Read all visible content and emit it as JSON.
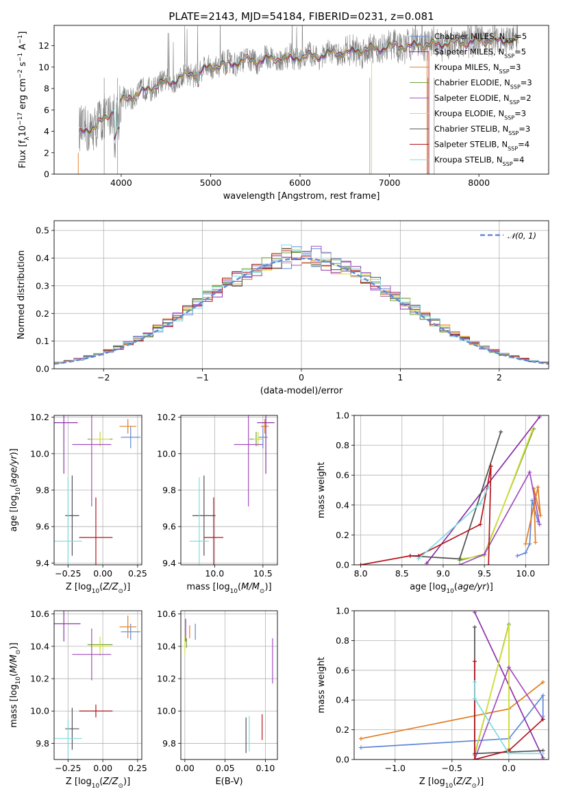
{
  "figure": {
    "title": "PLATE=2143, MJD=54184, FIBERID=0231, z=0.081"
  },
  "colors": {
    "Chabrier MILES": "#5f87d6",
    "Salpeter MILES": "#8b2ea8",
    "Kroupa MILES": "#e07b1f",
    "Chabrier ELODIE": "#6ea332",
    "Salpeter ELODIE": "#a04cc0",
    "Kroupa ELODIE": "#d8e03a",
    "Chabrier STELIB": "#4f4f4f",
    "Salpeter STELIB": "#b4121a",
    "Kroupa STELIB": "#7ddbe0",
    "data": "#808080",
    "pinkAlt": "#e07fb8"
  },
  "chart_data": [
    {
      "id": "spectrum",
      "type": "line",
      "title": "PLATE=2143, MJD=54184, FIBERID=0231, z=0.081",
      "xlabel": "wavelength [Angstrom, rest frame]",
      "ylabel": "Flux [f_λ 10^-17 erg cm^-2 s^-1 A^-1]",
      "xlim": [
        3250,
        8780
      ],
      "ylim": [
        0,
        13.9
      ],
      "xticks": [
        4000,
        5000,
        6000,
        7000,
        8000
      ],
      "yticks": [
        0,
        2,
        4,
        6,
        8,
        10,
        12
      ],
      "legend_position": "upper-right",
      "continuum_x": [
        3530,
        3650,
        3800,
        3900,
        4000,
        4200,
        4400,
        4600,
        4800,
        5000,
        5200,
        5400,
        5600,
        5800,
        6000,
        6200,
        6400,
        6600,
        6800,
        7000,
        7200,
        7400,
        7600,
        7800,
        8000,
        8200,
        8400
      ],
      "continuum_y": [
        3.9,
        4.2,
        5.0,
        6.0,
        6.8,
        7.6,
        8.3,
        8.8,
        9.4,
        10.0,
        10.3,
        10.6,
        10.7,
        10.8,
        10.9,
        11.1,
        11.3,
        11.5,
        11.7,
        11.9,
        12.0,
        12.1,
        12.2,
        12.3,
        12.4,
        12.5,
        12.5
      ],
      "series": [
        {
          "name": "Chabrier MILES",
          "nssp": "5"
        },
        {
          "name": "Salpeter MILES",
          "nssp": "5"
        },
        {
          "name": "Kroupa MILES",
          "nssp": "3"
        },
        {
          "name": "Chabrier ELODIE",
          "nssp": "3"
        },
        {
          "name": "Salpeter ELODIE",
          "nssp": "2"
        },
        {
          "name": "Kroupa ELODIE",
          "nssp": "3"
        },
        {
          "name": "Chabrier STELIB",
          "nssp": "3"
        },
        {
          "name": "Salpeter STELIB",
          "nssp": "4"
        },
        {
          "name": "Kroupa STELIB",
          "nssp": "4"
        }
      ]
    },
    {
      "id": "residuals",
      "type": "line",
      "xlabel": "(data-model)/error",
      "ylabel": "Normed distribution",
      "xlim": [
        -2.5,
        2.5
      ],
      "ylim": [
        0,
        0.535
      ],
      "xticks": [
        -2,
        -1,
        0,
        1,
        2
      ],
      "yticks": [
        0.0,
        0.1,
        0.2,
        0.3,
        0.4,
        0.5
      ],
      "grid": true,
      "legend": "𝒩(0, 1)",
      "legend_position": "upper-right",
      "bin_width": 0.1
    },
    {
      "id": "age_vs_Z",
      "type": "scatter",
      "xlabel": "Z [log10(Z/Z⊙)]",
      "ylabel": "age [log10(age/yr)]",
      "xlim": [
        -0.35,
        0.28
      ],
      "ylim": [
        9.39,
        10.21
      ],
      "xticks": [
        -0.25,
        0.0,
        0.25
      ],
      "yticks": [
        9.4,
        9.6,
        9.8,
        10.0,
        10.2
      ],
      "grid": true,
      "points": [
        {
          "model": "Chabrier MILES",
          "x": 0.2,
          "y": 10.09,
          "xerr": 0.07,
          "yerr": 0.06
        },
        {
          "model": "Kroupa MILES",
          "x": 0.18,
          "y": 10.15,
          "xerr": 0.06,
          "yerr": 0.04
        },
        {
          "model": "Salpeter MILES",
          "x": -0.28,
          "y": 10.17,
          "xerr": 0.1,
          "yerr": 0.28
        },
        {
          "model": "Chabrier ELODIE",
          "x": -0.02,
          "y": 10.08,
          "xerr": 0.09,
          "yerr": 0.04
        },
        {
          "model": "Kroupa ELODIE",
          "x": -0.02,
          "y": 10.08,
          "xerr": 0.07,
          "yerr": 0.04
        },
        {
          "model": "Salpeter ELODIE",
          "x": -0.08,
          "y": 10.05,
          "xerr": 0.14,
          "yerr": 0.34
        },
        {
          "model": "Chabrier STELIB",
          "x": -0.22,
          "y": 9.66,
          "xerr": 0.05,
          "yerr": 0.22
        },
        {
          "model": "Salpeter STELIB",
          "x": -0.05,
          "y": 9.54,
          "xerr": 0.12,
          "yerr": 0.22
        },
        {
          "model": "Kroupa STELIB",
          "x": -0.25,
          "y": 9.52,
          "xerr": 0.1,
          "yerr": 0.35
        }
      ]
    },
    {
      "id": "age_vs_mass",
      "type": "scatter",
      "xlabel": "mass [log10(M/M⊙)]",
      "ylabel": "",
      "xlim": [
        9.65,
        10.65
      ],
      "ylim": [
        9.39,
        10.21
      ],
      "xticks": [
        10.0,
        10.5
      ],
      "yticks": [
        9.4,
        9.6,
        9.8,
        10.0,
        10.2
      ],
      "grid": true,
      "points": [
        {
          "model": "Chabrier MILES",
          "x": 10.5,
          "y": 10.09,
          "xerr": 0.05,
          "yerr": 0.06
        },
        {
          "model": "Kroupa MILES",
          "x": 10.52,
          "y": 10.15,
          "xerr": 0.04,
          "yerr": 0.04
        },
        {
          "model": "Salpeter MILES",
          "x": 10.53,
          "y": 10.17,
          "xerr": 0.09,
          "yerr": 0.28
        },
        {
          "model": "Chabrier ELODIE",
          "x": 10.43,
          "y": 10.08,
          "xerr": 0.07,
          "yerr": 0.04
        },
        {
          "model": "Kroupa ELODIE",
          "x": 10.45,
          "y": 10.08,
          "xerr": 0.05,
          "yerr": 0.04
        },
        {
          "model": "Salpeter ELODIE",
          "x": 10.35,
          "y": 10.05,
          "xerr": 0.15,
          "yerr": 0.34
        },
        {
          "model": "Chabrier STELIB",
          "x": 9.89,
          "y": 9.66,
          "xerr": 0.12,
          "yerr": 0.22
        },
        {
          "model": "Salpeter STELIB",
          "x": 9.99,
          "y": 9.54,
          "xerr": 0.1,
          "yerr": 0.22
        },
        {
          "model": "Kroupa STELIB",
          "x": 9.84,
          "y": 9.52,
          "xerr": 0.1,
          "yerr": 0.35
        }
      ]
    },
    {
      "id": "weight_vs_age",
      "type": "line",
      "xlabel": "age [log10(age/yr)]",
      "ylabel": "mass weight",
      "xlim": [
        7.92,
        10.28
      ],
      "ylim": [
        0,
        1.0
      ],
      "xticks": [
        8.0,
        8.5,
        9.0,
        9.5,
        10.0
      ],
      "yticks": [
        0.0,
        0.2,
        0.4,
        0.6,
        0.8,
        1.0
      ],
      "grid": true,
      "series": [
        {
          "name": "Chabrier MILES",
          "x": [
            9.9,
            10.0,
            10.05,
            10.08,
            10.15
          ],
          "y": [
            0.06,
            0.08,
            0.14,
            0.43,
            0.29
          ]
        },
        {
          "name": "Kroupa MILES",
          "x": [
            10.0,
            10.15,
            10.18,
            10.1,
            10.12
          ],
          "y": [
            0.14,
            0.52,
            0.33,
            0.51,
            0.15
          ]
        },
        {
          "name": "Salpeter MILES",
          "x": [
            8.8,
            10.17
          ],
          "y": [
            0.01,
            0.99
          ]
        },
        {
          "name": "Chabrier ELODIE",
          "x": [
            9.2,
            9.5,
            10.1
          ],
          "y": [
            0.03,
            0.07,
            0.91
          ]
        },
        {
          "name": "Kroupa ELODIE",
          "x": [
            9.2,
            9.5,
            10.08
          ],
          "y": [
            0.04,
            0.06,
            0.9
          ]
        },
        {
          "name": "Salpeter ELODIE",
          "x": [
            9.2,
            9.5,
            10.05,
            10.17
          ],
          "y": [
            0.0,
            0.07,
            0.62,
            0.27
          ]
        },
        {
          "name": "Chabrier STELIB",
          "x": [
            8.6,
            9.2,
            9.7
          ],
          "y": [
            0.06,
            0.04,
            0.89
          ]
        },
        {
          "name": "Salpeter STELIB",
          "x": [
            8.0,
            8.6,
            8.7,
            9.45,
            9.58,
            9.55
          ],
          "y": [
            0.0,
            0.06,
            0.06,
            0.27,
            0.66,
            0.0
          ]
        },
        {
          "name": "Kroupa STELIB",
          "x": [
            8.7,
            9.45,
            9.55
          ],
          "y": [
            0.04,
            0.41,
            0.52
          ]
        }
      ]
    },
    {
      "id": "mass_vs_Z",
      "type": "scatter",
      "xlabel": "Z [log10(Z/Z⊙)]",
      "ylabel": "mass [log10(M/M⊙)]",
      "xlim": [
        -0.35,
        0.28
      ],
      "ylim": [
        9.7,
        10.62
      ],
      "xticks": [
        -0.25,
        0.0,
        0.25
      ],
      "yticks": [
        9.8,
        10.0,
        10.2,
        10.4,
        10.6
      ],
      "grid": true,
      "points": [
        {
          "model": "Chabrier MILES",
          "x": 0.2,
          "y": 10.49,
          "xerr": 0.07,
          "yerr": 0.05
        },
        {
          "model": "Kroupa MILES",
          "x": 0.18,
          "y": 10.52,
          "xerr": 0.06,
          "yerr": 0.07
        },
        {
          "model": "Salpeter MILES",
          "x": -0.28,
          "y": 10.54,
          "xerr": 0.12,
          "yerr": 0.11
        },
        {
          "model": "Chabrier ELODIE",
          "x": -0.02,
          "y": 10.41,
          "xerr": 0.09,
          "yerr": 0.03
        },
        {
          "model": "Kroupa ELODIE",
          "x": -0.02,
          "y": 10.4,
          "xerr": 0.07,
          "yerr": 0.06
        },
        {
          "model": "Salpeter ELODIE",
          "x": -0.08,
          "y": 10.35,
          "xerr": 0.14,
          "yerr": 0.16
        },
        {
          "model": "Chabrier STELIB",
          "x": -0.22,
          "y": 9.89,
          "xerr": 0.05,
          "yerr": 0.13
        },
        {
          "model": "Salpeter STELIB",
          "x": -0.05,
          "y": 10.0,
          "xerr": 0.12,
          "yerr": 0.04
        },
        {
          "model": "Kroupa STELIB",
          "x": -0.25,
          "y": 9.83,
          "xerr": 0.1,
          "yerr": 0.12
        }
      ]
    },
    {
      "id": "mass_vs_ebv",
      "type": "scatter",
      "xlabel": "E(B-V)",
      "ylabel": "",
      "xlim": [
        -0.005,
        0.115
      ],
      "ylim": [
        9.7,
        10.62
      ],
      "xticks": [
        0.0,
        0.05,
        0.1
      ],
      "yticks": [
        9.8,
        10.0,
        10.2,
        10.4,
        10.6
      ],
      "grid": true,
      "points": [
        {
          "model": "Chabrier MILES",
          "x": 0.013,
          "y": 10.49,
          "xerr": 0,
          "yerr": 0.05
        },
        {
          "model": "Kroupa MILES",
          "x": 0.006,
          "y": 10.49,
          "xerr": 0,
          "yerr": 0.04
        },
        {
          "model": "Salpeter MILES",
          "x": 0.001,
          "y": 10.5,
          "xerr": 0,
          "yerr": 0.07
        },
        {
          "model": "Chabrier ELODIE",
          "x": 0.002,
          "y": 10.42,
          "xerr": 0,
          "yerr": 0.03
        },
        {
          "model": "Kroupa ELODIE",
          "x": 0.0,
          "y": 10.41,
          "xerr": 0,
          "yerr": 0.06
        },
        {
          "model": "Salpeter ELODIE",
          "x": 0.109,
          "y": 10.31,
          "xerr": 0,
          "yerr": 0.14
        },
        {
          "model": "Chabrier STELIB",
          "x": 0.076,
          "y": 9.85,
          "xerr": 0,
          "yerr": 0.11
        },
        {
          "model": "Salpeter STELIB",
          "x": 0.096,
          "y": 9.9,
          "xerr": 0,
          "yerr": 0.08
        },
        {
          "model": "Kroupa STELIB",
          "x": 0.08,
          "y": 9.86,
          "xerr": 0,
          "yerr": 0.11
        }
      ]
    },
    {
      "id": "weight_vs_Z",
      "type": "line",
      "xlabel": "Z [log10(Z/Z⊙)]",
      "ylabel": "mass weight",
      "xlim": [
        -1.36,
        0.35
      ],
      "ylim": [
        0,
        1.0
      ],
      "xticks": [
        -1.0,
        -0.5,
        0.0
      ],
      "yticks": [
        0.0,
        0.2,
        0.4,
        0.6,
        0.8,
        1.0
      ],
      "grid": true,
      "series": [
        {
          "name": "Chabrier MILES",
          "x": [
            -1.3,
            0.0,
            0.3,
            0.3
          ],
          "y": [
            0.08,
            0.14,
            0.43,
            0.29
          ]
        },
        {
          "name": "Kroupa MILES",
          "x": [
            -1.3,
            0.0,
            0.3
          ],
          "y": [
            0.14,
            0.34,
            0.52
          ]
        },
        {
          "name": "Salpeter MILES",
          "x": [
            -0.3,
            0.3
          ],
          "y": [
            0.99,
            0.01
          ]
        },
        {
          "name": "Chabrier ELODIE",
          "x": [
            -0.3,
            0.0,
            0.0
          ],
          "y": [
            0.03,
            0.91,
            0.07
          ]
        },
        {
          "name": "Kroupa ELODIE",
          "x": [
            -0.3,
            0.0,
            0.0
          ],
          "y": [
            0.04,
            0.9,
            0.06
          ]
        },
        {
          "name": "Salpeter ELODIE",
          "x": [
            -0.3,
            0.0,
            0.3
          ],
          "y": [
            0.0,
            0.62,
            0.27
          ]
        },
        {
          "name": "Chabrier STELIB",
          "x": [
            -0.3,
            -0.3,
            0.3
          ],
          "y": [
            0.89,
            0.04,
            0.06
          ]
        },
        {
          "name": "Salpeter STELIB",
          "x": [
            -0.3,
            -0.3,
            0.0,
            0.3
          ],
          "y": [
            0.66,
            0.0,
            0.06,
            0.27
          ]
        },
        {
          "name": "Kroupa STELIB",
          "x": [
            -0.3,
            -0.3,
            0.0,
            0.3
          ],
          "y": [
            0.52,
            0.41,
            0.04,
            0.04
          ]
        }
      ]
    }
  ]
}
